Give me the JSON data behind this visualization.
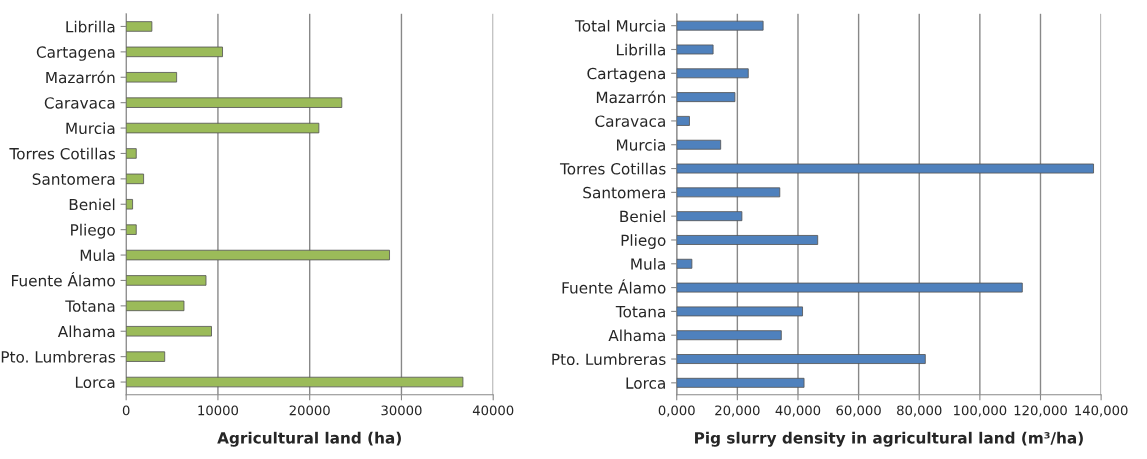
{
  "chart_data": [
    {
      "type": "bar",
      "orientation": "horizontal",
      "xlabel": "Agricultural land (ha)",
      "categories": [
        "Librilla",
        "Cartagena",
        "Mazarrón",
        "Caravaca",
        "Murcia",
        "Torres Cotillas",
        "Santomera",
        "Beniel",
        "Pliego",
        "Mula",
        "Fuente Álamo",
        "Totana",
        "Alhama",
        "Pto. Lumbreras",
        "Lorca"
      ],
      "series": [
        {
          "color": "#9bbb59",
          "values": [
            2800,
            10500,
            5500,
            23500,
            21000,
            1100,
            1900,
            700,
            1100,
            28700,
            8700,
            6300,
            9300,
            4200,
            36700
          ]
        }
      ],
      "xlim": [
        0,
        40000
      ],
      "xticks": [
        0,
        10000,
        20000,
        30000,
        40000
      ],
      "grid": "x"
    },
    {
      "type": "bar",
      "orientation": "horizontal",
      "xlabel": "Pig slurry density in agricultural land (m³/ha)",
      "categories": [
        "Total Murcia",
        "Librilla",
        "Cartagena",
        "Mazarrón",
        "Caravaca",
        "Murcia",
        "Torres Cotillas",
        "Santomera",
        "Beniel",
        "Pliego",
        "Mula",
        "Fuente Álamo",
        "Totana",
        "Alhama",
        "Pto. Lumbreras",
        "Lorca"
      ],
      "series": [
        {
          "color": "#4f81bd",
          "values": [
            28500,
            12000,
            23600,
            19200,
            4200,
            14500,
            137500,
            34000,
            21500,
            46500,
            5000,
            114000,
            41500,
            34500,
            82000,
            42000
          ]
        }
      ],
      "xlim": [
        0,
        140000
      ],
      "xticks": [
        {
          "value": 0,
          "label": "0,000"
        },
        {
          "value": 20000,
          "label": "20,000"
        },
        {
          "value": 40000,
          "label": "40,000"
        },
        {
          "value": 60000,
          "label": "60,000"
        },
        {
          "value": 80000,
          "label": "80,000"
        },
        {
          "value": 100000,
          "label": "100,000"
        },
        {
          "value": 120000,
          "label": "120,000"
        },
        {
          "value": 140000,
          "label": "140,000"
        }
      ],
      "grid": "x"
    }
  ]
}
